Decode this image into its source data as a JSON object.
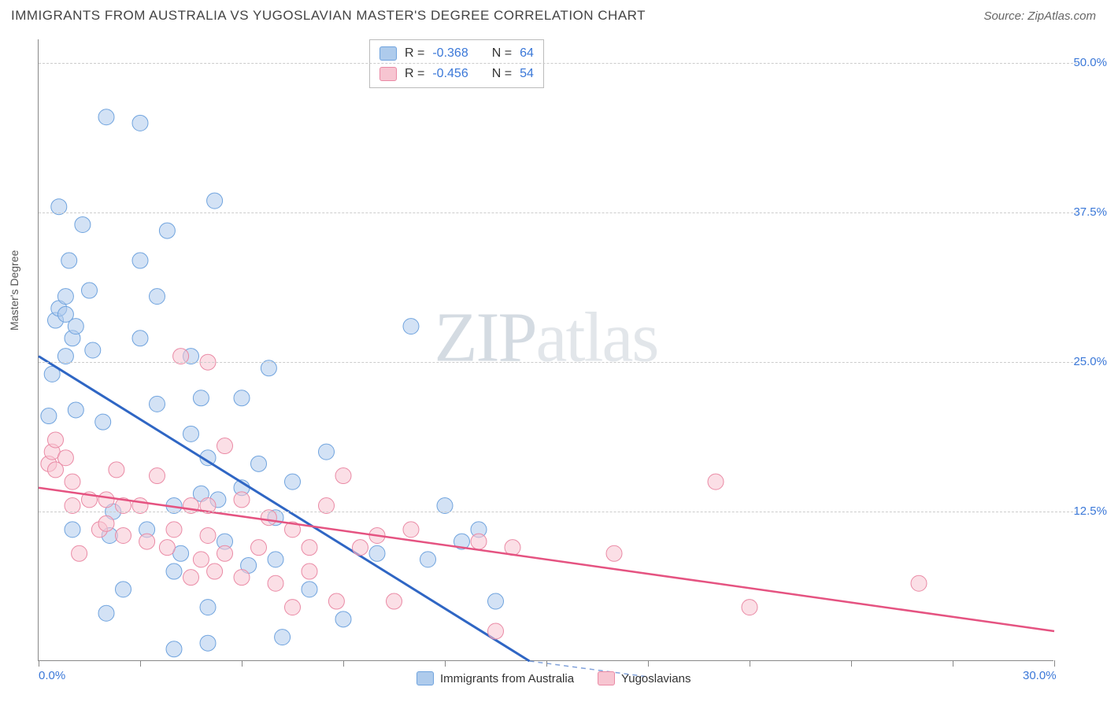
{
  "title": "IMMIGRANTS FROM AUSTRALIA VS YUGOSLAVIAN MASTER'S DEGREE CORRELATION CHART",
  "source": "Source: ZipAtlas.com",
  "watermark_zip": "ZIP",
  "watermark_atlas": "atlas",
  "chart": {
    "type": "scatter-correlation",
    "background_color": "#ffffff",
    "grid_color": "#cccccc",
    "axis_color": "#888888",
    "tick_label_color": "#3b78d8",
    "ylabel": "Master's Degree",
    "ylabel_fontsize": 14,
    "xlim": [
      0,
      30
    ],
    "ylim": [
      0,
      52
    ],
    "xticks": [
      0,
      3,
      6,
      9,
      12,
      15,
      18,
      21,
      24,
      27,
      30
    ],
    "xtick_labels": {
      "0": "0.0%",
      "30": "30.0%"
    },
    "yticks": [
      12.5,
      25.0,
      37.5,
      50.0
    ],
    "ytick_labels": [
      "12.5%",
      "25.0%",
      "37.5%",
      "50.0%"
    ],
    "stats_box": {
      "rows": [
        {
          "r_label": "R =",
          "r_value": "-0.368",
          "n_label": "N =",
          "n_value": "64",
          "swatch_fill": "#aecbec",
          "swatch_border": "#6fa3de"
        },
        {
          "r_label": "R =",
          "r_value": "-0.456",
          "n_label": "N =",
          "n_value": "54",
          "swatch_fill": "#f7c5d1",
          "swatch_border": "#ea8aa5"
        }
      ]
    },
    "legend_bottom": [
      {
        "label": "Immigrants from Australia",
        "swatch_fill": "#aecbec",
        "swatch_border": "#6fa3de"
      },
      {
        "label": "Yugoslavians",
        "swatch_fill": "#f7c5d1",
        "swatch_border": "#ea8aa5"
      }
    ],
    "series": [
      {
        "name": "australia",
        "marker_fill": "#aecbec",
        "marker_stroke": "#6fa3de",
        "marker_fill_opacity": 0.55,
        "marker_radius": 10,
        "trend_color": "#2f66c4",
        "trend_width": 3,
        "trend_start": {
          "x": 0,
          "y": 25.5
        },
        "trend_end_solid": {
          "x": 14.5,
          "y": 0
        },
        "trend_end_dashed": {
          "x": 18.0,
          "y": 0
        },
        "points": [
          {
            "x": 0.3,
            "y": 20.5
          },
          {
            "x": 0.4,
            "y": 24.0
          },
          {
            "x": 0.5,
            "y": 28.5
          },
          {
            "x": 0.6,
            "y": 29.5
          },
          {
            "x": 0.6,
            "y": 38.0
          },
          {
            "x": 0.8,
            "y": 25.5
          },
          {
            "x": 0.8,
            "y": 29.0
          },
          {
            "x": 0.8,
            "y": 30.5
          },
          {
            "x": 0.9,
            "y": 33.5
          },
          {
            "x": 1.0,
            "y": 27.0
          },
          {
            "x": 1.0,
            "y": 11.0
          },
          {
            "x": 1.1,
            "y": 21.0
          },
          {
            "x": 1.1,
            "y": 28.0
          },
          {
            "x": 1.3,
            "y": 36.5
          },
          {
            "x": 1.5,
            "y": 31.0
          },
          {
            "x": 1.6,
            "y": 26.0
          },
          {
            "x": 1.9,
            "y": 20.0
          },
          {
            "x": 2.0,
            "y": 45.5
          },
          {
            "x": 2.0,
            "y": 4.0
          },
          {
            "x": 2.1,
            "y": 10.5
          },
          {
            "x": 2.2,
            "y": 12.5
          },
          {
            "x": 2.5,
            "y": 6.0
          },
          {
            "x": 3.0,
            "y": 27.0
          },
          {
            "x": 3.0,
            "y": 45.0
          },
          {
            "x": 3.0,
            "y": 33.5
          },
          {
            "x": 3.2,
            "y": 11.0
          },
          {
            "x": 3.5,
            "y": 21.5
          },
          {
            "x": 3.5,
            "y": 30.5
          },
          {
            "x": 3.8,
            "y": 36.0
          },
          {
            "x": 4.0,
            "y": 7.5
          },
          {
            "x": 4.0,
            "y": 1.0
          },
          {
            "x": 4.0,
            "y": 13.0
          },
          {
            "x": 4.2,
            "y": 9.0
          },
          {
            "x": 4.5,
            "y": 19.0
          },
          {
            "x": 4.5,
            "y": 25.5
          },
          {
            "x": 4.8,
            "y": 14.0
          },
          {
            "x": 4.8,
            "y": 22.0
          },
          {
            "x": 5.0,
            "y": 17.0
          },
          {
            "x": 5.0,
            "y": 1.5
          },
          {
            "x": 5.0,
            "y": 4.5
          },
          {
            "x": 5.2,
            "y": 38.5
          },
          {
            "x": 5.3,
            "y": 13.5
          },
          {
            "x": 5.5,
            "y": 10.0
          },
          {
            "x": 6.0,
            "y": 14.5
          },
          {
            "x": 6.0,
            "y": 22.0
          },
          {
            "x": 6.2,
            "y": 8.0
          },
          {
            "x": 6.5,
            "y": 16.5
          },
          {
            "x": 6.8,
            "y": 24.5
          },
          {
            "x": 7.0,
            "y": 8.5
          },
          {
            "x": 7.0,
            "y": 12.0
          },
          {
            "x": 7.2,
            "y": 2.0
          },
          {
            "x": 7.5,
            "y": 15.0
          },
          {
            "x": 8.0,
            "y": 6.0
          },
          {
            "x": 8.5,
            "y": 17.5
          },
          {
            "x": 9.0,
            "y": 3.5
          },
          {
            "x": 10.0,
            "y": 9.0
          },
          {
            "x": 11.0,
            "y": 28.0
          },
          {
            "x": 11.5,
            "y": 8.5
          },
          {
            "x": 12.0,
            "y": 13.0
          },
          {
            "x": 12.5,
            "y": 10.0
          },
          {
            "x": 13.0,
            "y": 11.0
          },
          {
            "x": 13.5,
            "y": 5.0
          }
        ]
      },
      {
        "name": "yugoslavia",
        "marker_fill": "#f7c5d1",
        "marker_stroke": "#ea8aa5",
        "marker_fill_opacity": 0.55,
        "marker_radius": 10,
        "trend_color": "#e55381",
        "trend_width": 2.5,
        "trend_start": {
          "x": 0,
          "y": 14.5
        },
        "trend_end_solid": {
          "x": 30,
          "y": 2.5
        },
        "points": [
          {
            "x": 0.3,
            "y": 16.5
          },
          {
            "x": 0.4,
            "y": 17.5
          },
          {
            "x": 0.5,
            "y": 18.5
          },
          {
            "x": 0.5,
            "y": 16.0
          },
          {
            "x": 0.8,
            "y": 17.0
          },
          {
            "x": 1.0,
            "y": 13.0
          },
          {
            "x": 1.0,
            "y": 15.0
          },
          {
            "x": 1.2,
            "y": 9.0
          },
          {
            "x": 1.5,
            "y": 13.5
          },
          {
            "x": 1.8,
            "y": 11.0
          },
          {
            "x": 2.0,
            "y": 11.5
          },
          {
            "x": 2.0,
            "y": 13.5
          },
          {
            "x": 2.3,
            "y": 16.0
          },
          {
            "x": 2.5,
            "y": 13.0
          },
          {
            "x": 2.5,
            "y": 10.5
          },
          {
            "x": 3.0,
            "y": 13.0
          },
          {
            "x": 3.2,
            "y": 10.0
          },
          {
            "x": 3.5,
            "y": 15.5
          },
          {
            "x": 3.8,
            "y": 9.5
          },
          {
            "x": 4.0,
            "y": 11.0
          },
          {
            "x": 4.2,
            "y": 25.5
          },
          {
            "x": 4.5,
            "y": 13.0
          },
          {
            "x": 4.5,
            "y": 7.0
          },
          {
            "x": 4.8,
            "y": 8.5
          },
          {
            "x": 5.0,
            "y": 10.5
          },
          {
            "x": 5.0,
            "y": 13.0
          },
          {
            "x": 5.0,
            "y": 25.0
          },
          {
            "x": 5.2,
            "y": 7.5
          },
          {
            "x": 5.5,
            "y": 9.0
          },
          {
            "x": 5.5,
            "y": 18.0
          },
          {
            "x": 6.0,
            "y": 7.0
          },
          {
            "x": 6.0,
            "y": 13.5
          },
          {
            "x": 6.5,
            "y": 9.5
          },
          {
            "x": 6.8,
            "y": 12.0
          },
          {
            "x": 7.0,
            "y": 6.5
          },
          {
            "x": 7.5,
            "y": 11.0
          },
          {
            "x": 7.5,
            "y": 4.5
          },
          {
            "x": 8.0,
            "y": 7.5
          },
          {
            "x": 8.0,
            "y": 9.5
          },
          {
            "x": 8.5,
            "y": 13.0
          },
          {
            "x": 8.8,
            "y": 5.0
          },
          {
            "x": 9.0,
            "y": 15.5
          },
          {
            "x": 9.5,
            "y": 9.5
          },
          {
            "x": 10.0,
            "y": 10.5
          },
          {
            "x": 10.5,
            "y": 5.0
          },
          {
            "x": 11.0,
            "y": 11.0
          },
          {
            "x": 13.0,
            "y": 10.0
          },
          {
            "x": 13.5,
            "y": 2.5
          },
          {
            "x": 14.0,
            "y": 9.5
          },
          {
            "x": 17.0,
            "y": 9.0
          },
          {
            "x": 20.0,
            "y": 15.0
          },
          {
            "x": 21.0,
            "y": 4.5
          },
          {
            "x": 26.0,
            "y": 6.5
          }
        ]
      }
    ]
  }
}
